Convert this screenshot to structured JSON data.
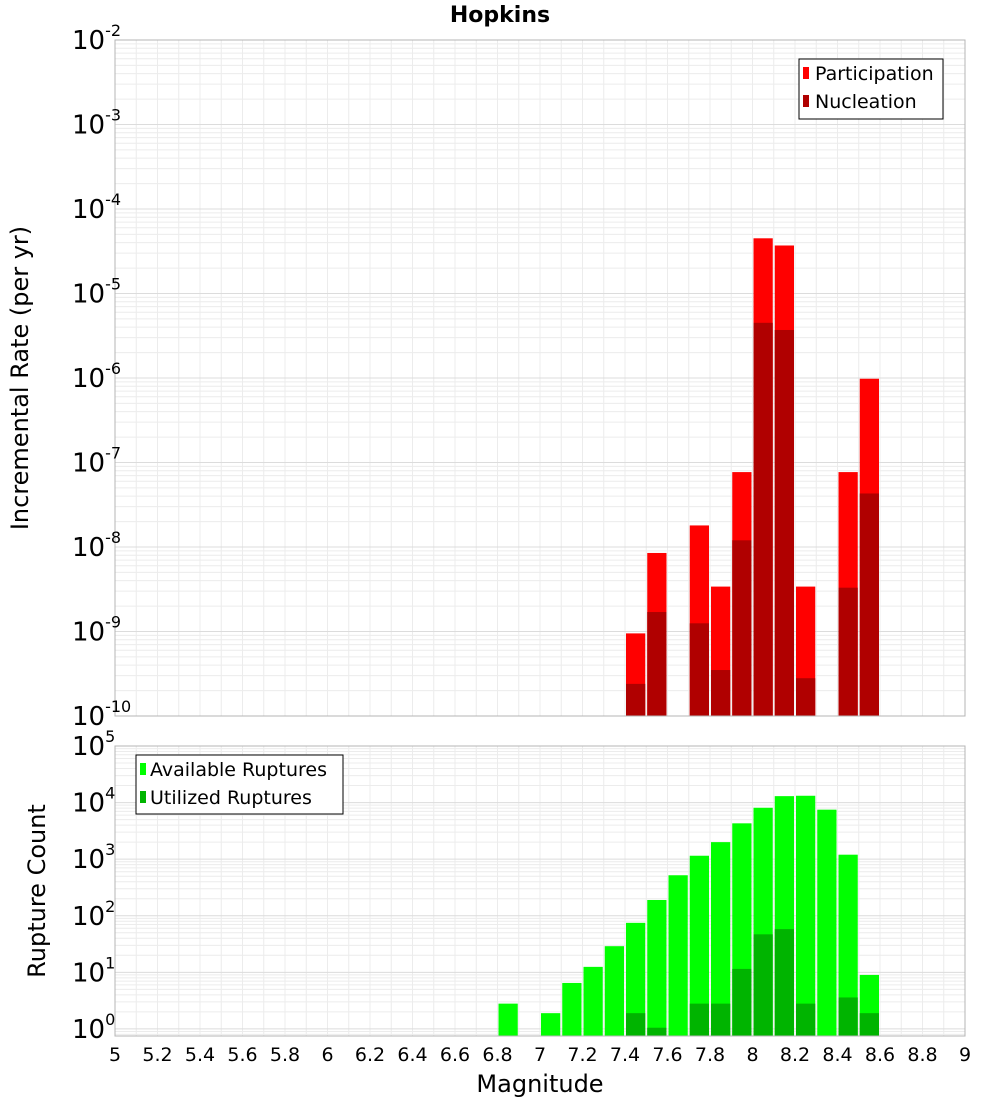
{
  "chart_data": [
    {
      "type": "bar",
      "title": "Hopkins",
      "ylabel": "Incremental Rate (per yr)",
      "xlabel": "",
      "y_scale": "log",
      "ylim": [
        1e-10,
        0.01
      ],
      "xlim": [
        5,
        9
      ],
      "y_tick_base": "10",
      "y_tick_exponents": [
        "-10",
        "-9",
        "-8",
        "-7",
        "-6",
        "-5",
        "-4",
        "-3",
        "-2"
      ],
      "bar_width": 0.1,
      "legend_position": "top-right",
      "series": [
        {
          "name": "Participation",
          "color": "#ff0000",
          "x": [
            7.45,
            7.55,
            7.75,
            7.85,
            7.95,
            8.05,
            8.15,
            8.25,
            8.45,
            8.55
          ],
          "values": [
            9.5e-10,
            8.5e-09,
            1.8e-08,
            3.4e-09,
            7.7e-08,
            4.5e-05,
            3.7e-05,
            3.4e-09,
            7.7e-08,
            9.8e-07
          ]
        },
        {
          "name": "Nucleation",
          "color": "#b00000",
          "x": [
            7.45,
            7.55,
            7.75,
            7.85,
            7.95,
            8.05,
            8.15,
            8.25,
            8.45,
            8.55
          ],
          "values": [
            2.4e-10,
            1.7e-09,
            1.25e-09,
            3.5e-10,
            1.2e-08,
            4.5e-06,
            3.7e-06,
            2.8e-10,
            3.3e-09,
            4.3e-08
          ]
        }
      ]
    },
    {
      "type": "bar",
      "title": "",
      "ylabel": "Rupture Count",
      "xlabel": "Magnitude",
      "y_scale": "log",
      "ylim": [
        0.75,
        100000.0
      ],
      "xlim": [
        5,
        9
      ],
      "y_tick_base": "10",
      "y_tick_exponents": [
        "0",
        "1",
        "2",
        "3",
        "4",
        "5"
      ],
      "x_tick_labels": [
        "5",
        "5.2",
        "5.4",
        "5.6",
        "5.8",
        "6",
        "6.2",
        "6.4",
        "6.6",
        "6.8",
        "7",
        "7.2",
        "7.4",
        "7.6",
        "7.8",
        "8",
        "8.2",
        "8.4",
        "8.6",
        "8.8",
        "9"
      ],
      "bar_width": 0.1,
      "legend_position": "top-left",
      "series": [
        {
          "name": "Available Ruptures",
          "color": "#00ff00",
          "x": [
            6.85,
            7.05,
            7.15,
            7.25,
            7.35,
            7.45,
            7.55,
            7.65,
            7.75,
            7.85,
            7.95,
            8.05,
            8.15,
            8.25,
            8.35,
            8.45,
            8.55
          ],
          "values": [
            2.8,
            1.9,
            6.5,
            12.5,
            29,
            75,
            190,
            520,
            1150,
            2000,
            4300,
            8100,
            13000,
            13200,
            7500,
            1200,
            9
          ]
        },
        {
          "name": "Utilized Ruptures",
          "color": "#00b400",
          "x": [
            7.45,
            7.55,
            7.75,
            7.85,
            7.95,
            8.05,
            8.15,
            8.25,
            8.45,
            8.55
          ],
          "values": [
            1.9,
            1.05,
            2.8,
            2.8,
            11.5,
            47,
            58,
            2.8,
            3.6,
            1.9
          ]
        }
      ]
    }
  ]
}
